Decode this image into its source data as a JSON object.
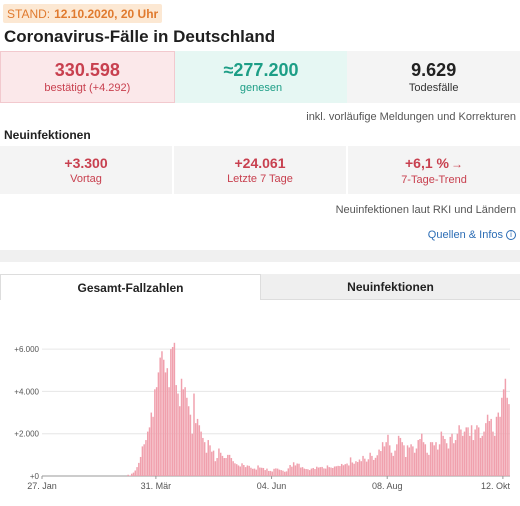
{
  "stand": {
    "label": "STAND:",
    "value": "12.10.2020, 20 Uhr"
  },
  "title": "Coronavirus-Fälle in Deutschland",
  "stats": {
    "confirmed": {
      "value": "330.598",
      "label": "bestätigt (+4.292)"
    },
    "recovered": {
      "value": "≈277.200",
      "label": "genesen"
    },
    "deaths": {
      "value": "9.629",
      "label": "Todesfälle"
    }
  },
  "note_preliminary": "inkl. vorläufige Meldungen und Korrekturen",
  "new_infections": {
    "title": "Neuinfektionen",
    "prev_day": {
      "value": "+3.300",
      "label": "Vortag"
    },
    "last7": {
      "value": "+24.061",
      "label": "Letzte 7 Tage"
    },
    "trend": {
      "value": "+6,1 %",
      "label": "7-Tage-Trend",
      "arrow": "→"
    }
  },
  "note_source": "Neuinfektionen laut RKI und Ländern",
  "sources_link": "Quellen & Infos",
  "tabs": {
    "total": "Gesamt-Fallzahlen",
    "new": "Neuinfektionen"
  },
  "colors": {
    "accent_red": "#c8404f",
    "recovered_green": "#1d9e86",
    "bar": "#f0a0ad",
    "stand_orange": "#e07a2e"
  },
  "chart_data": {
    "type": "bar",
    "ylim": [
      0,
      7000
    ],
    "yticks": [
      0,
      2000,
      4000,
      6000
    ],
    "ytick_labels": [
      "+0",
      "+2.000",
      "+4.000",
      "+6.000"
    ],
    "xtick_labels": [
      "27. Jan",
      "31. Mär",
      "04. Jun",
      "08. Aug",
      "12. Okt"
    ],
    "xtick_indices": [
      0,
      64,
      129,
      194,
      259
    ],
    "values": [
      0,
      0,
      0,
      0,
      0,
      0,
      0,
      0,
      0,
      0,
      0,
      0,
      0,
      0,
      0,
      0,
      0,
      0,
      0,
      0,
      0,
      0,
      0,
      0,
      0,
      0,
      0,
      0,
      0,
      0,
      0,
      0,
      0,
      0,
      0,
      0,
      0,
      0,
      0,
      0,
      0,
      0,
      0,
      0,
      0,
      0,
      0,
      0,
      60,
      20,
      110,
      160,
      260,
      420,
      620,
      900,
      1400,
      1500,
      1700,
      2100,
      2300,
      3000,
      2800,
      4100,
      4200,
      4900,
      5600,
      5900,
      5500,
      4900,
      5100,
      4200,
      6000,
      6100,
      6300,
      4300,
      3900,
      3300,
      4600,
      4100,
      4200,
      3700,
      3300,
      2900,
      2000,
      3900,
      2500,
      2700,
      2400,
      2100,
      1800,
      1600,
      1100,
      1700,
      1450,
      1150,
      1200,
      700,
      850,
      1300,
      1100,
      950,
      850,
      850,
      1000,
      1000,
      850,
      700,
      600,
      560,
      500,
      450,
      600,
      520,
      420,
      500,
      480,
      390,
      340,
      350,
      300,
      500,
      400,
      390,
      380,
      280,
      350,
      240,
      240,
      210,
      340,
      360,
      350,
      300,
      280,
      250,
      200,
      220,
      360,
      520,
      440,
      650,
      500,
      590,
      580,
      400,
      420,
      350,
      330,
      320,
      280,
      350,
      380,
      330,
      440,
      400,
      420,
      430,
      360,
      350,
      500,
      420,
      400,
      380,
      450,
      460,
      480,
      470,
      570,
      510,
      560,
      590,
      500,
      880,
      640,
      580,
      700,
      660,
      780,
      700,
      950,
      820,
      680,
      790,
      1100,
      950,
      760,
      860,
      980,
      1250,
      1180,
      1600,
      1400,
      1600,
      1950,
      1450,
      1100,
      950,
      1200,
      1500,
      1900,
      1800,
      1600,
      1450,
      900,
      1450,
      1350,
      1500,
      1400,
      1100,
      1300,
      1700,
      1750,
      2000,
      1600,
      1500,
      1100,
      1000,
      1600,
      1600,
      1450,
      1600,
      1250,
      1500,
      2100,
      1900,
      1750,
      1550,
      1300,
      1850,
      2000,
      1550,
      1700,
      2000,
      2400,
      2200,
      1900,
      2100,
      2300,
      2300,
      1900,
      2400,
      1700,
      2200,
      2400,
      2300,
      1800,
      1900,
      2100,
      2500,
      2900,
      2600,
      2700,
      2100,
      1900,
      2800,
      3000,
      2800,
      3700,
      4100,
      4600,
      3700,
      3400
    ]
  }
}
